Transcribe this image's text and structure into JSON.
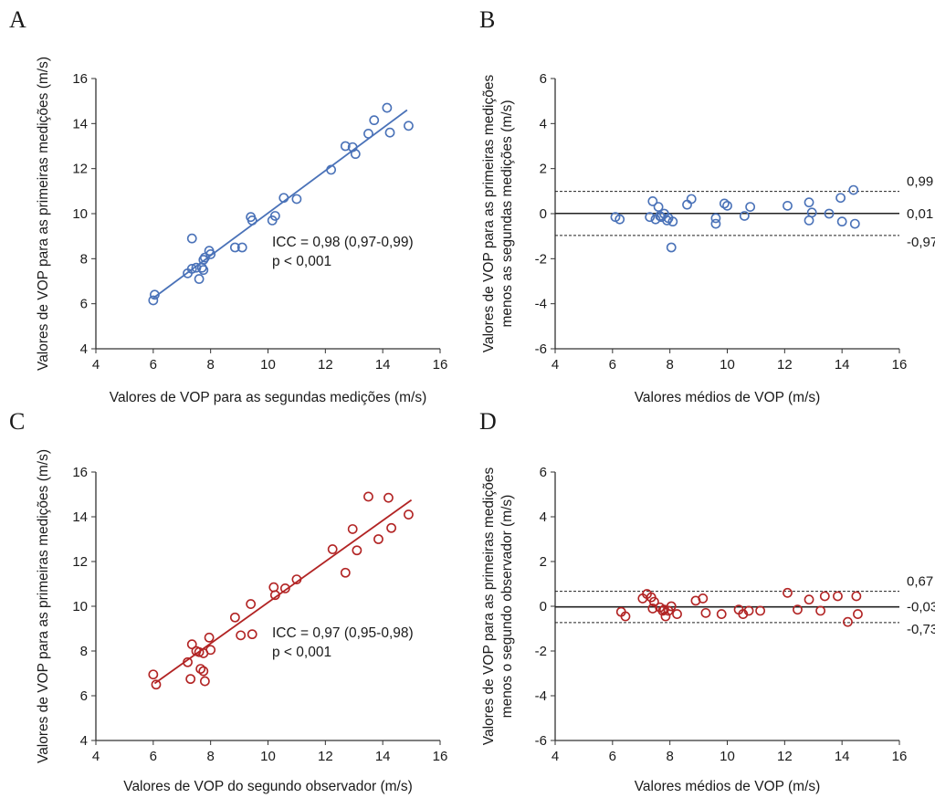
{
  "figure": {
    "panel_letters": [
      "A",
      "B",
      "C",
      "D"
    ]
  },
  "colors": {
    "blue": "#4a72b8",
    "red": "#b22424",
    "axis": "#333333",
    "text": "#1a1a1a"
  },
  "chart_data": [
    {
      "panel": "A",
      "type": "scatter",
      "xlabel": "Valores de VOP para as segundas medições (m/s)",
      "ylabel": [
        "Valores de VOP para as primeiras medições (m/s)"
      ],
      "xlim": [
        4,
        16
      ],
      "ylim": [
        4,
        16
      ],
      "xticks": [
        4,
        6,
        8,
        10,
        12,
        14,
        16
      ],
      "yticks": [
        4,
        6,
        8,
        10,
        12,
        14,
        16
      ],
      "grid": false,
      "color": "#4a72b8",
      "points": [
        [
          6.0,
          6.15
        ],
        [
          6.05,
          6.4
        ],
        [
          7.2,
          7.35
        ],
        [
          7.35,
          8.9
        ],
        [
          7.35,
          7.55
        ],
        [
          7.5,
          7.6
        ],
        [
          7.6,
          7.1
        ],
        [
          7.7,
          7.6
        ],
        [
          7.75,
          7.95
        ],
        [
          7.75,
          7.5
        ],
        [
          7.8,
          8.05
        ],
        [
          7.95,
          8.35
        ],
        [
          8.0,
          8.2
        ],
        [
          8.85,
          8.5
        ],
        [
          9.1,
          8.5
        ],
        [
          9.4,
          9.85
        ],
        [
          9.45,
          9.7
        ],
        [
          10.15,
          9.7
        ],
        [
          10.25,
          9.9
        ],
        [
          10.55,
          10.7
        ],
        [
          11.0,
          10.65
        ],
        [
          12.2,
          11.95
        ],
        [
          12.7,
          13.0
        ],
        [
          12.95,
          12.95
        ],
        [
          13.05,
          12.65
        ],
        [
          13.5,
          13.55
        ],
        [
          13.7,
          14.15
        ],
        [
          14.15,
          14.7
        ],
        [
          14.25,
          13.6
        ],
        [
          14.9,
          13.9
        ]
      ],
      "fit_line": [
        [
          6.0,
          6.25
        ],
        [
          14.85,
          14.6
        ]
      ],
      "annotations": [
        "ICC = 0,98 (0,97-0,99)",
        "p < 0,001"
      ]
    },
    {
      "panel": "B",
      "type": "scatter",
      "xlabel": "Valores médios de VOP (m/s)",
      "ylabel": [
        "Valores de VOP para as primeiras medições",
        "menos as segundas medições (m/s)"
      ],
      "xlim": [
        4,
        16
      ],
      "ylim": [
        -6,
        6
      ],
      "xticks": [
        4,
        6,
        8,
        10,
        12,
        14,
        16
      ],
      "yticks": [
        -6,
        -4,
        -2,
        0,
        2,
        4,
        6
      ],
      "grid": false,
      "color": "#4a72b8",
      "mean_line": 0.01,
      "limits": [
        0.99,
        -0.97
      ],
      "limit_labels": [
        "0,99",
        "0,01",
        "-0,97"
      ],
      "points": [
        [
          6.1,
          -0.15
        ],
        [
          6.25,
          -0.25
        ],
        [
          7.3,
          -0.15
        ],
        [
          7.4,
          0.55
        ],
        [
          7.5,
          -0.25
        ],
        [
          7.6,
          0.3
        ],
        [
          7.65,
          -0.1
        ],
        [
          7.7,
          -0.15
        ],
        [
          7.8,
          0.0
        ],
        [
          7.9,
          -0.3
        ],
        [
          7.95,
          -0.2
        ],
        [
          8.05,
          -1.5
        ],
        [
          8.1,
          -0.35
        ],
        [
          8.6,
          0.4
        ],
        [
          8.75,
          0.65
        ],
        [
          9.6,
          -0.2
        ],
        [
          9.6,
          -0.45
        ],
        [
          9.9,
          0.45
        ],
        [
          10.0,
          0.35
        ],
        [
          10.6,
          -0.1
        ],
        [
          10.8,
          0.3
        ],
        [
          12.1,
          0.35
        ],
        [
          12.85,
          0.5
        ],
        [
          12.85,
          -0.3
        ],
        [
          12.95,
          0.05
        ],
        [
          13.55,
          0.0
        ],
        [
          13.95,
          0.7
        ],
        [
          14.0,
          -0.35
        ],
        [
          14.4,
          1.05
        ],
        [
          14.45,
          -0.45
        ]
      ]
    },
    {
      "panel": "C",
      "type": "scatter",
      "xlabel": "Valores de VOP do segundo observador (m/s)",
      "ylabel": [
        "Valores de VOP para as primeiras medições (m/s)"
      ],
      "xlim": [
        4,
        16
      ],
      "ylim": [
        4,
        16
      ],
      "xticks": [
        4,
        6,
        8,
        10,
        12,
        14,
        16
      ],
      "yticks": [
        4,
        6,
        8,
        10,
        12,
        14,
        16
      ],
      "grid": false,
      "color": "#b22424",
      "points": [
        [
          6.0,
          6.95
        ],
        [
          6.1,
          6.5
        ],
        [
          7.2,
          7.5
        ],
        [
          7.3,
          6.75
        ],
        [
          7.35,
          8.3
        ],
        [
          7.5,
          8.0
        ],
        [
          7.6,
          7.95
        ],
        [
          7.65,
          7.2
        ],
        [
          7.75,
          7.9
        ],
        [
          7.75,
          7.1
        ],
        [
          7.8,
          6.65
        ],
        [
          7.95,
          8.6
        ],
        [
          8.0,
          8.05
        ],
        [
          8.85,
          9.5
        ],
        [
          9.05,
          8.7
        ],
        [
          9.4,
          10.1
        ],
        [
          9.45,
          8.75
        ],
        [
          10.2,
          10.85
        ],
        [
          10.25,
          10.5
        ],
        [
          10.6,
          10.8
        ],
        [
          11.0,
          11.2
        ],
        [
          12.25,
          12.55
        ],
        [
          12.7,
          11.5
        ],
        [
          12.95,
          13.45
        ],
        [
          13.1,
          12.5
        ],
        [
          13.5,
          14.9
        ],
        [
          13.85,
          13.0
        ],
        [
          14.2,
          14.85
        ],
        [
          14.3,
          13.5
        ],
        [
          14.9,
          14.1
        ]
      ],
      "fit_line": [
        [
          6.05,
          6.55
        ],
        [
          15.0,
          14.75
        ]
      ],
      "annotations": [
        "ICC = 0,97 (0,95-0,98)",
        "p < 0,001"
      ]
    },
    {
      "panel": "D",
      "type": "scatter",
      "xlabel": "Valores médios de VOP (m/s)",
      "ylabel": [
        "Valores de VOP para as primeiras medições",
        "menos o segundo observador (m/s)"
      ],
      "xlim": [
        4,
        16
      ],
      "ylim": [
        -6,
        6
      ],
      "xticks": [
        4,
        6,
        8,
        10,
        12,
        14,
        16
      ],
      "yticks": [
        -6,
        -4,
        -2,
        0,
        2,
        4,
        6
      ],
      "grid": false,
      "color": "#b22424",
      "mean_line": -0.03,
      "limits": [
        0.67,
        -0.73
      ],
      "limit_labels": [
        "0,67",
        "-0,03",
        "-0,73"
      ],
      "points": [
        [
          6.3,
          -0.25
        ],
        [
          6.45,
          -0.45
        ],
        [
          7.05,
          0.35
        ],
        [
          7.2,
          0.55
        ],
        [
          7.35,
          0.4
        ],
        [
          7.4,
          -0.1
        ],
        [
          7.45,
          0.2
        ],
        [
          7.65,
          -0.05
        ],
        [
          7.75,
          -0.2
        ],
        [
          7.8,
          -0.15
        ],
        [
          7.85,
          -0.45
        ],
        [
          7.95,
          -0.2
        ],
        [
          8.05,
          0.0
        ],
        [
          8.25,
          -0.35
        ],
        [
          8.9,
          0.25
        ],
        [
          9.15,
          0.35
        ],
        [
          9.25,
          -0.3
        ],
        [
          9.8,
          -0.35
        ],
        [
          10.4,
          -0.15
        ],
        [
          10.55,
          -0.35
        ],
        [
          10.75,
          -0.2
        ],
        [
          11.15,
          -0.2
        ],
        [
          12.1,
          0.6
        ],
        [
          12.45,
          -0.15
        ],
        [
          12.85,
          0.3
        ],
        [
          13.25,
          -0.2
        ],
        [
          13.4,
          0.45
        ],
        [
          13.85,
          0.45
        ],
        [
          14.2,
          -0.7
        ],
        [
          14.5,
          0.45
        ],
        [
          14.55,
          -0.35
        ]
      ]
    }
  ]
}
